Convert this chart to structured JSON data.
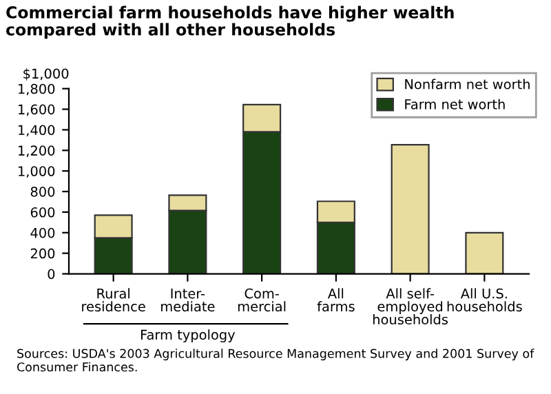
{
  "chart_data": {
    "type": "bar",
    "title": "Commercial farm households have higher wealth\ncompared with all other households",
    "ylabel": "$1,000",
    "categories": [
      "Rural\nresidence",
      "Inter-\nmediate",
      "Com-\nmercial",
      "All\nfarms",
      "All self-\nemployed\nhouseholds",
      "All U.S.\nhouseholds"
    ],
    "stacked": true,
    "series": [
      {
        "name": "Farm net worth",
        "color": "#1a4314",
        "values": [
          350,
          615,
          1380,
          500,
          null,
          null
        ]
      },
      {
        "name": "Nonfarm net worth",
        "color": "#e8dc9f",
        "values": [
          220,
          150,
          265,
          205,
          1255,
          400
        ]
      }
    ],
    "ylim": [
      0,
      1800
    ],
    "yticks": [
      0,
      200,
      400,
      600,
      800,
      {
        "value": 1000,
        "label": "1,000"
      },
      {
        "value": 1200,
        "label": "1,200"
      },
      {
        "value": 1400,
        "label": "1,400"
      },
      {
        "value": 1600,
        "label": "1,600"
      },
      {
        "value": 1800,
        "label": "1,800"
      }
    ],
    "grid": false,
    "legend": "top right",
    "annotations": [
      "Farm typology",
      "Sources: USDA's 2003 Agricultural Resource Management Survey and 2001 Survey of Consumer Finances."
    ]
  }
}
